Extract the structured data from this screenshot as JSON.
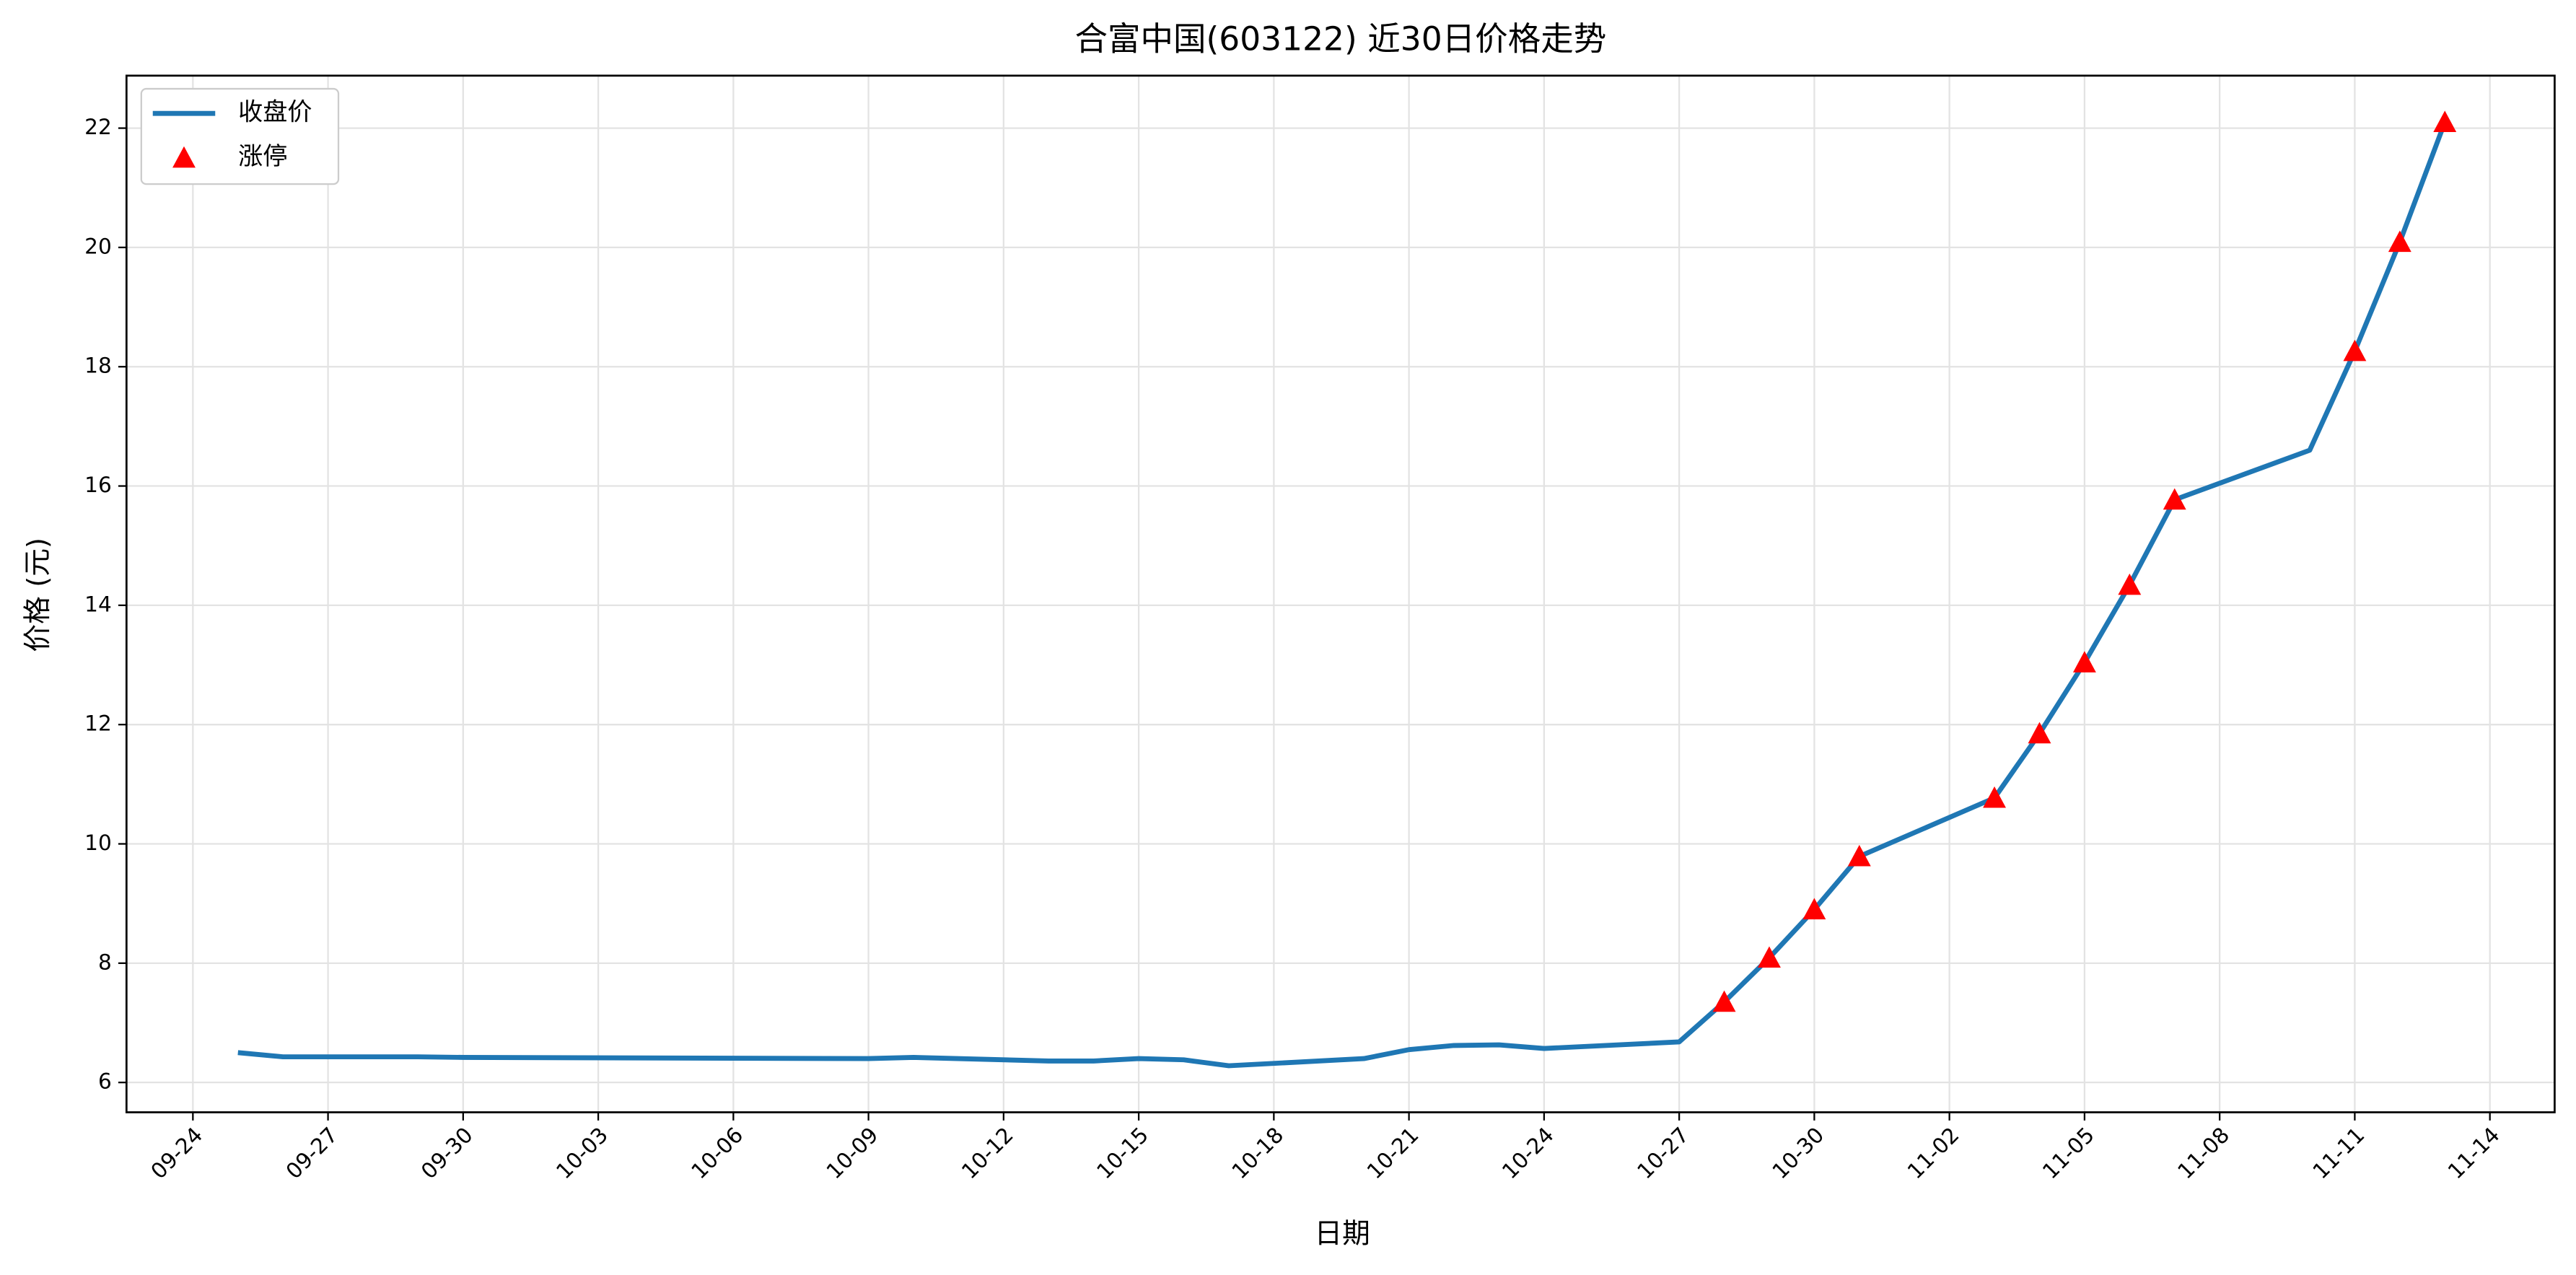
{
  "chart_data": {
    "type": "line",
    "title": "合富中国(603122) 近30日价格走势",
    "x_label": "日期",
    "y_label": "价格 (元)",
    "xlim": [
      "09-23",
      "11-15"
    ],
    "xticks": [
      "09-24",
      "09-27",
      "09-30",
      "10-03",
      "10-06",
      "10-09",
      "10-12",
      "10-15",
      "10-18",
      "10-21",
      "10-24",
      "10-27",
      "10-30",
      "11-02",
      "11-05",
      "11-08",
      "11-11",
      "11-14"
    ],
    "ylim": [
      5.5,
      22.88
    ],
    "yticks": [
      6,
      8,
      10,
      12,
      14,
      16,
      18,
      20,
      22
    ],
    "grid": true,
    "legend": "upper left",
    "series": [
      {
        "name": "收盘价",
        "type": "line",
        "color": "#1f77b4",
        "x": [
          "09-25",
          "09-26",
          "09-29",
          "09-30",
          "10-09",
          "10-10",
          "10-13",
          "10-14",
          "10-15",
          "10-16",
          "10-17",
          "10-20",
          "10-21",
          "10-22",
          "10-23",
          "10-24",
          "10-27",
          "10-28",
          "10-29",
          "10-30",
          "10-31",
          "11-03",
          "11-04",
          "11-05",
          "11-06",
          "11-07",
          "11-10",
          "11-11",
          "11-12",
          "11-13"
        ],
        "values": [
          6.5,
          6.43,
          6.43,
          6.42,
          6.4,
          6.42,
          6.36,
          6.36,
          6.4,
          6.38,
          6.28,
          6.4,
          6.55,
          6.62,
          6.63,
          6.57,
          6.68,
          7.35,
          8.09,
          8.9,
          9.79,
          10.77,
          11.85,
          13.04,
          14.34,
          15.77,
          16.6,
          18.26,
          20.09,
          22.1
        ]
      },
      {
        "name": "涨停",
        "type": "scatter",
        "color": "#ff0000",
        "x": [
          "10-28",
          "10-29",
          "10-30",
          "10-31",
          "11-03",
          "11-04",
          "11-05",
          "11-06",
          "11-07",
          "11-11",
          "11-12",
          "11-13"
        ],
        "values": [
          7.35,
          8.09,
          8.9,
          9.79,
          10.77,
          11.85,
          13.04,
          14.34,
          15.77,
          18.26,
          20.09,
          22.1
        ]
      }
    ]
  }
}
